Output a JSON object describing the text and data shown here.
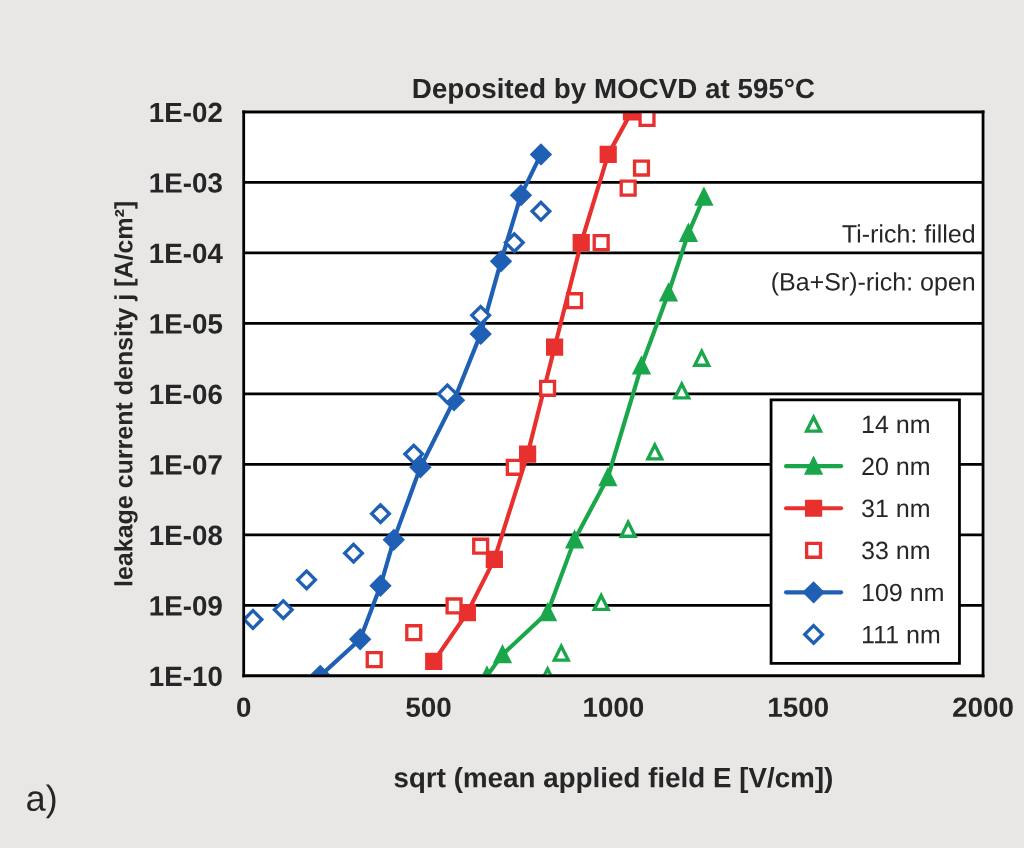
{
  "chart_data": {
    "type": "scatter",
    "title": "Deposited by MOCVD at 595°C",
    "xlabel": "sqrt (mean applied field E [V/cm])",
    "ylabel": "leakage current density j [A/cm²]",
    "annotations": [
      "Ti-rich: filled",
      "(Ba+Sr)-rich: open",
      "a)"
    ],
    "log": "y",
    "xlim": [
      0,
      2000
    ],
    "xticks": [
      0,
      500,
      1000,
      1500,
      2000
    ],
    "ylim": [
      1e-10,
      0.01
    ],
    "yticks": [
      {
        "value": 1e-10,
        "label": "1E-10"
      },
      {
        "value": 1e-09,
        "label": "1E-09"
      },
      {
        "value": 1e-08,
        "label": "1E-08"
      },
      {
        "value": 1e-07,
        "label": "1E-07"
      },
      {
        "value": 1e-06,
        "label": "1E-06"
      },
      {
        "value": 1e-05,
        "label": "1E-05"
      },
      {
        "value": 0.0001,
        "label": "1E-04"
      },
      {
        "value": 0.001,
        "label": "1E-03"
      },
      {
        "value": 0.01,
        "label": "1E-02"
      }
    ],
    "grid": "y",
    "legend": "bottom right",
    "series": [
      {
        "name": "14 nm",
        "color": "#1aa64a",
        "marker": "triangle",
        "line_style": "none",
        "x": [
          822,
          859,
          967,
          1040,
          1112,
          1185,
          1239
        ],
        "values": [
          1e-10,
          2.1e-10,
          1.1e-09,
          1.2e-08,
          1.5e-07,
          1.1e-06,
          3.2e-06
        ]
      },
      {
        "name": "20 nm",
        "type": "line",
        "color": "#1aa64a",
        "marker": "triangle",
        "line_style": "solid",
        "x": [
          658,
          700,
          822,
          895,
          985,
          1076,
          1149,
          1203,
          1245
        ],
        "values": [
          1e-10,
          2e-10,
          7.9e-10,
          8.5e-09,
          6.5e-08,
          2.5e-06,
          2.7e-05,
          0.00019,
          0.00062
        ]
      },
      {
        "name": "31 nm",
        "type": "line",
        "color": "#e8312f",
        "marker": "square",
        "line_style": "solid",
        "x": [
          514,
          605,
          678,
          768,
          841,
          913,
          986,
          1049
        ],
        "values": [
          1.6e-10,
          7.9e-10,
          4.5e-09,
          1.4e-07,
          4.6e-06,
          0.00014,
          0.0025,
          0.01
        ]
      },
      {
        "name": "33 nm",
        "color": "#e8312f",
        "marker": "square",
        "line_style": "none",
        "x": [
          353,
          460,
          569,
          641,
          732,
          822,
          895,
          967,
          1040,
          1076,
          1091
        ],
        "values": [
          1.7e-10,
          4.1e-10,
          9.8e-10,
          6.9e-09,
          9.1e-08,
          1.2e-06,
          2.1e-05,
          0.00014,
          0.00083,
          0.0016,
          0.0081
        ]
      },
      {
        "name": "109 nm",
        "type": "line",
        "color": "#1f5fb4",
        "marker": "diamond",
        "line_style": "solid",
        "x": [
          207,
          315,
          370,
          406,
          478,
          569,
          641,
          696,
          750,
          804
        ],
        "values": [
          1e-10,
          3.3e-10,
          1.9e-09,
          8.5e-09,
          9.1e-08,
          8.1e-07,
          7.1e-06,
          7.6e-05,
          0.00066,
          0.0025
        ]
      },
      {
        "name": "111 nm",
        "color": "#1f5fb4",
        "marker": "diamond",
        "line_style": "none",
        "x": [
          25,
          107,
          170,
          297,
          370,
          460,
          551,
          641,
          732,
          804
        ],
        "values": [
          6.3e-10,
          8.7e-10,
          2.3e-09,
          5.5e-09,
          2e-08,
          1.4e-07,
          1e-06,
          1.3e-05,
          0.00014,
          0.00039
        ]
      }
    ]
  }
}
